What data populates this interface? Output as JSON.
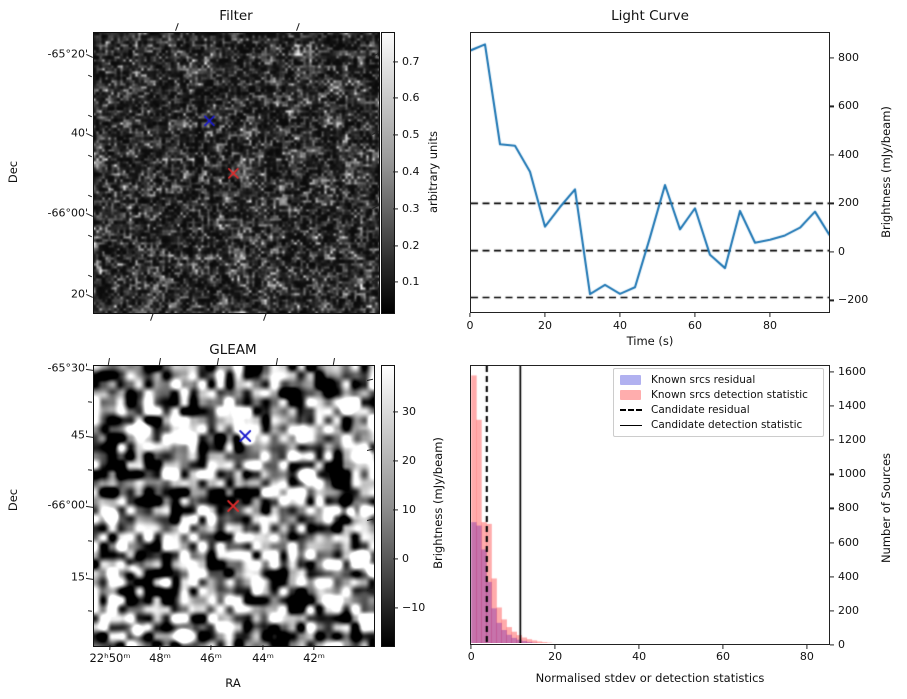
{
  "panels": {
    "filter": {
      "title": "Filter",
      "ylabel": "Dec",
      "colorbar_label": "arbitrary units",
      "dec_tick_labels": [
        "-65°20'",
        "40'",
        "-66°00'",
        "20'"
      ],
      "colorbar_tick_labels": [
        "0.7",
        "0.6",
        "0.5",
        "0.4",
        "0.3",
        "0.2",
        "0.1"
      ]
    },
    "light_curve": {
      "title": "Light Curve",
      "xlabel": "Time (s)",
      "ylabel": "Brightness (mJy/beam)",
      "x_tick_labels": [
        "0",
        "20",
        "40",
        "60",
        "80"
      ],
      "y_tick_labels": [
        "800",
        "600",
        "400",
        "200",
        "0",
        "−200"
      ]
    },
    "gleam": {
      "title": "GLEAM",
      "xlabel": "RA",
      "ylabel": "Dec",
      "colorbar_label": "Brightness (mJy/beam)",
      "dec_tick_labels": [
        "-65°30'",
        "45'",
        "-66°00'",
        "15'"
      ],
      "ra_tick_labels": [
        "22ʰ50ᵐ",
        "48ᵐ",
        "46ᵐ",
        "44ᵐ",
        "42ᵐ"
      ],
      "colorbar_tick_labels": [
        "30",
        "20",
        "10",
        "0",
        "−10"
      ]
    },
    "histogram": {
      "xlabel": "Normalised stdev or detection statistics",
      "ylabel": "Number of Sources",
      "x_tick_labels": [
        "0",
        "20",
        "40",
        "60",
        "80"
      ],
      "y_tick_labels": [
        "0",
        "200",
        "400",
        "600",
        "800",
        "1000",
        "1200",
        "1400",
        "1600"
      ],
      "legend": {
        "items": [
          {
            "label": "Known srcs residual",
            "type": "patch",
            "swatch": "#b1b1f0"
          },
          {
            "label": "Known srcs detection statistic",
            "type": "patch",
            "swatch": "#ffadad"
          },
          {
            "label": "Candidate residual",
            "type": "dashed-line"
          },
          {
            "label": "Candidate detection statistic",
            "type": "solid-line"
          }
        ]
      }
    }
  },
  "colors": {
    "line": "#1f77b4",
    "hist_blue_fill": "rgba(0,0,255,0.33)",
    "hist_pink_fill": "rgba(255,0,0,0.33)",
    "marker_blue": "#1a1acd",
    "marker_red": "#dd2b2b",
    "dashed_line": "#000000"
  },
  "chart_data": [
    {
      "type": "heatmap",
      "panel": "filter",
      "title": "Filter",
      "ylabel": "Dec",
      "y_tick_labels": [
        "-65°20'",
        "40'",
        "-66°00'",
        "20'"
      ],
      "colorbar": {
        "label": "arbitrary units",
        "ticks": [
          0.7,
          0.6,
          0.5,
          0.4,
          0.3,
          0.2,
          0.1
        ],
        "range": [
          0.02,
          0.78
        ]
      },
      "description": "grayscale small-grain noise map (dark, sigma-filtered image)",
      "markers": [
        {
          "name": "candidate-position",
          "shape": "x",
          "color": "blue",
          "fx": 0.405,
          "fy": 0.314
        },
        {
          "name": "source-position",
          "shape": "x",
          "color": "red",
          "fx": 0.489,
          "fy": 0.501
        }
      ]
    },
    {
      "type": "line",
      "panel": "light_curve",
      "title": "Light Curve",
      "xlabel": "Time (s)",
      "ylabel": "Brightness (mJy/beam)",
      "xlim": [
        0,
        96
      ],
      "ylim": [
        -252,
        907
      ],
      "x": [
        0,
        4,
        8,
        12,
        16,
        20,
        24,
        28,
        32,
        36,
        40,
        44,
        48,
        52,
        56,
        60,
        64,
        68,
        72,
        76,
        80,
        84,
        88,
        92,
        96
      ],
      "y": [
        830,
        856,
        444,
        438,
        331,
        104,
        185,
        258,
        -174,
        -136,
        -173,
        -146,
        60,
        276,
        93,
        180,
        -12,
        -67,
        169,
        38,
        50,
        68,
        100,
        166,
        66
      ],
      "dashed_hlines": [
        200,
        5,
        -188
      ],
      "x_ticks": [
        0,
        20,
        40,
        60,
        80
      ],
      "y_ticks": [
        800,
        600,
        400,
        200,
        0,
        -200
      ]
    },
    {
      "type": "heatmap",
      "panel": "gleam",
      "title": "GLEAM",
      "xlabel": "RA",
      "ylabel": "Dec",
      "x_tick_labels": [
        "22ʰ50ᵐ",
        "48ᵐ",
        "46ᵐ",
        "44ᵐ",
        "42ᵐ"
      ],
      "y_tick_labels": [
        "-65°30'",
        "45'",
        "-66°00'",
        "15'"
      ],
      "colorbar": {
        "label": "Brightness (mJy/beam)",
        "ticks": [
          30,
          20,
          10,
          0,
          -10
        ],
        "range": [
          -17.6,
          39.6
        ]
      },
      "description": "smoothed grayscale confusion-noise map with bright point sources",
      "markers": [
        {
          "name": "candidate-position",
          "shape": "x",
          "color": "blue",
          "fx": 0.54,
          "fy": 0.25
        },
        {
          "name": "source-position",
          "shape": "x",
          "color": "red",
          "fx": 0.497,
          "fy": 0.5
        }
      ],
      "bright_sources_frac": [
        [
          0.171,
          0.225
        ],
        [
          0.54,
          0.25
        ],
        [
          0.757,
          0.393
        ],
        [
          0.905,
          0.143
        ],
        [
          0.914,
          0.518
        ],
        [
          0.132,
          0.72
        ],
        [
          0.953,
          0.685
        ],
        [
          0.996,
          0.726
        ],
        [
          0.157,
          0.94
        ],
        [
          0.318,
          0.96
        ],
        [
          0.06,
          0.53
        ]
      ]
    },
    {
      "type": "histogram",
      "panel": "histogram",
      "xlabel": "Normalised stdev or detection statistics",
      "ylabel": "Number of Sources",
      "xlim": [
        -0.3,
        85.5
      ],
      "ylim": [
        0,
        1641
      ],
      "bin_start": 0,
      "bin_width": 1.2,
      "series": [
        {
          "name": "Known srcs residual",
          "color": "blue",
          "counts": [
            720,
            700,
            560,
            370,
            215,
            130,
            88,
            60,
            42,
            31,
            24,
            18,
            14,
            11,
            9,
            7,
            6,
            10,
            8,
            4,
            3,
            2,
            2,
            1,
            1,
            1,
            0,
            0,
            0,
            0,
            2,
            0,
            3,
            0,
            0,
            0,
            0,
            2,
            0,
            0,
            0,
            0,
            0,
            0,
            0,
            0,
            0,
            0,
            0,
            0,
            0,
            0,
            0,
            0,
            0,
            0,
            0,
            0,
            0,
            0,
            0,
            0,
            0,
            0,
            0,
            0,
            0,
            0,
            0,
            0
          ]
        },
        {
          "name": "Known srcs detection statistic",
          "color": "red",
          "counts": [
            1580,
            1320,
            720,
            710,
            390,
            220,
            150,
            105,
            78,
            58,
            44,
            34,
            27,
            21,
            17,
            14,
            12,
            10,
            9,
            8,
            7,
            6,
            5,
            5,
            4,
            4,
            3,
            3,
            3,
            2,
            2,
            2,
            4,
            2,
            0,
            3,
            0,
            4,
            3,
            0,
            4,
            4,
            0,
            3,
            0,
            2,
            0,
            0,
            3,
            0,
            2,
            0,
            0,
            0,
            3,
            0,
            0,
            3,
            0,
            2,
            0,
            0,
            0,
            3,
            0,
            0,
            2,
            0,
            0,
            4
          ]
        }
      ],
      "vlines": [
        {
          "name": "Candidate residual",
          "x": 3.7,
          "style": "dashed"
        },
        {
          "name": "Candidate detection statistic",
          "x": 11.7,
          "style": "solid"
        }
      ],
      "x_ticks": [
        0,
        20,
        40,
        60,
        80
      ],
      "y_ticks": [
        0,
        200,
        400,
        600,
        800,
        1000,
        1200,
        1400,
        1600
      ]
    }
  ]
}
